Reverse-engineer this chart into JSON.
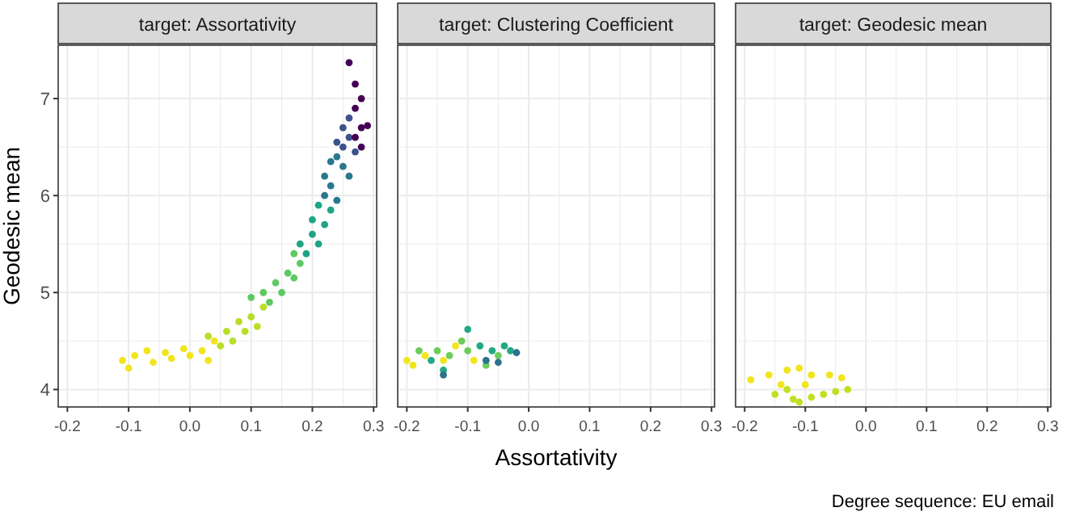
{
  "chart_data": [
    {
      "type": "scatter",
      "title": "target: Assortativity",
      "ylabel": "Geodesic mean",
      "xlim": [
        -0.215,
        0.305
      ],
      "ylim": [
        3.82,
        7.55
      ],
      "xticks": [
        {
          "value": -0.2,
          "label": "-0.2"
        },
        {
          "value": -0.1,
          "label": "-0.1"
        },
        {
          "value": 0,
          "label": "0.0"
        },
        {
          "value": 0.1,
          "label": "0.1"
        },
        {
          "value": 0.2,
          "label": "0.2"
        },
        {
          "value": 0.3,
          "label": "0.3"
        }
      ],
      "yticks": [
        4,
        5,
        6,
        7
      ],
      "grid": true,
      "marker": "circle",
      "series": [
        {
          "color": "#f1e51d",
          "x": [
            -0.11,
            -0.1,
            -0.09,
            -0.07,
            -0.06,
            -0.04,
            -0.03,
            -0.01,
            0.0,
            0.02,
            0.03,
            0.04
          ],
          "values": [
            4.3,
            4.22,
            4.35,
            4.4,
            4.28,
            4.38,
            4.32,
            4.42,
            4.35,
            4.4,
            4.3,
            4.5
          ]
        },
        {
          "color": "#b8de29",
          "x": [
            0.03,
            0.05,
            0.06,
            0.07,
            0.08,
            0.09,
            0.1,
            0.11,
            0.12
          ],
          "values": [
            4.55,
            4.45,
            4.6,
            4.5,
            4.7,
            4.6,
            4.75,
            4.65,
            4.85
          ]
        },
        {
          "color": "#5ec962",
          "x": [
            0.1,
            0.12,
            0.13,
            0.14,
            0.15,
            0.16,
            0.17,
            0.18,
            0.17
          ],
          "values": [
            4.95,
            5.0,
            4.9,
            5.1,
            5.0,
            5.2,
            5.15,
            5.3,
            5.4
          ]
        },
        {
          "color": "#20a486",
          "x": [
            0.18,
            0.19,
            0.2,
            0.21,
            0.2,
            0.22,
            0.21,
            0.23
          ],
          "values": [
            5.5,
            5.4,
            5.6,
            5.5,
            5.75,
            5.7,
            5.9,
            5.85
          ]
        },
        {
          "color": "#2a788e",
          "x": [
            0.22,
            0.23,
            0.24,
            0.22,
            0.25,
            0.24,
            0.26,
            0.23
          ],
          "values": [
            6.0,
            6.1,
            5.95,
            6.2,
            6.3,
            6.4,
            6.2,
            6.35
          ]
        },
        {
          "color": "#3b528b",
          "x": [
            0.25,
            0.26,
            0.24,
            0.27,
            0.25,
            0.26
          ],
          "values": [
            6.5,
            6.6,
            6.55,
            6.45,
            6.7,
            6.8
          ]
        },
        {
          "color": "#440154",
          "x": [
            0.27,
            0.28,
            0.29,
            0.27,
            0.28,
            0.27,
            0.26,
            0.28
          ],
          "values": [
            6.6,
            6.7,
            6.72,
            6.9,
            7.0,
            7.15,
            7.37,
            6.5
          ]
        }
      ]
    },
    {
      "type": "scatter",
      "title": "target: Clustering Coefficient",
      "xlabel": "Assortativity",
      "xlim": [
        -0.215,
        0.305
      ],
      "ylim": [
        3.82,
        7.55
      ],
      "xticks": [
        {
          "value": -0.2,
          "label": "-0.2"
        },
        {
          "value": -0.1,
          "label": "-0.1"
        },
        {
          "value": 0,
          "label": "0.0"
        },
        {
          "value": 0.1,
          "label": "0.1"
        },
        {
          "value": 0.2,
          "label": "0.2"
        },
        {
          "value": 0.3,
          "label": "0.3"
        }
      ],
      "yticks": [
        4,
        5,
        6,
        7
      ],
      "tick_labels": "x",
      "grid": true,
      "marker": "circle",
      "series": [
        {
          "color": "#f1e51d",
          "x": [
            -0.2,
            -0.19,
            -0.17,
            -0.14,
            -0.12,
            -0.09
          ],
          "values": [
            4.3,
            4.25,
            4.35,
            4.3,
            4.45,
            4.3
          ]
        },
        {
          "color": "#6ccd5a",
          "x": [
            -0.18,
            -0.15,
            -0.13,
            -0.11,
            -0.1,
            -0.07,
            -0.05
          ],
          "values": [
            4.4,
            4.4,
            4.35,
            4.5,
            4.4,
            4.25,
            4.35
          ]
        },
        {
          "color": "#22a884",
          "x": [
            -0.16,
            -0.14,
            -0.1,
            -0.08,
            -0.06,
            -0.04,
            -0.03
          ],
          "values": [
            4.3,
            4.2,
            4.62,
            4.45,
            4.4,
            4.45,
            4.4
          ]
        },
        {
          "color": "#2c728e",
          "x": [
            -0.14,
            -0.07,
            -0.02,
            -0.05
          ],
          "values": [
            4.15,
            4.3,
            4.38,
            4.28
          ]
        }
      ]
    },
    {
      "type": "scatter",
      "title": "target: Geodesic mean",
      "annotations": [
        "Degree sequence: EU email"
      ],
      "xlim": [
        -0.215,
        0.305
      ],
      "ylim": [
        3.82,
        7.55
      ],
      "xticks": [
        {
          "value": -0.2,
          "label": "-0.2"
        },
        {
          "value": -0.1,
          "label": "-0.1"
        },
        {
          "value": 0,
          "label": "0.0"
        },
        {
          "value": 0.1,
          "label": "0.1"
        },
        {
          "value": 0.2,
          "label": "0.2"
        },
        {
          "value": 0.3,
          "label": "0.3"
        }
      ],
      "yticks": [
        4,
        5,
        6,
        7
      ],
      "tick_labels": "x",
      "grid": true,
      "marker": "circle",
      "series": [
        {
          "color": "#f1e51d",
          "x": [
            -0.19,
            -0.16,
            -0.13,
            -0.11,
            -0.09,
            -0.06,
            -0.04,
            -0.14,
            -0.1
          ],
          "values": [
            4.1,
            4.15,
            4.2,
            4.22,
            4.15,
            4.15,
            4.12,
            4.05,
            4.05
          ]
        },
        {
          "color": "#c2df23",
          "x": [
            -0.15,
            -0.12,
            -0.09,
            -0.07,
            -0.05,
            -0.03,
            -0.11,
            -0.13
          ],
          "values": [
            3.95,
            3.9,
            3.92,
            3.95,
            3.98,
            4.0,
            3.87,
            4.0
          ]
        }
      ]
    }
  ]
}
